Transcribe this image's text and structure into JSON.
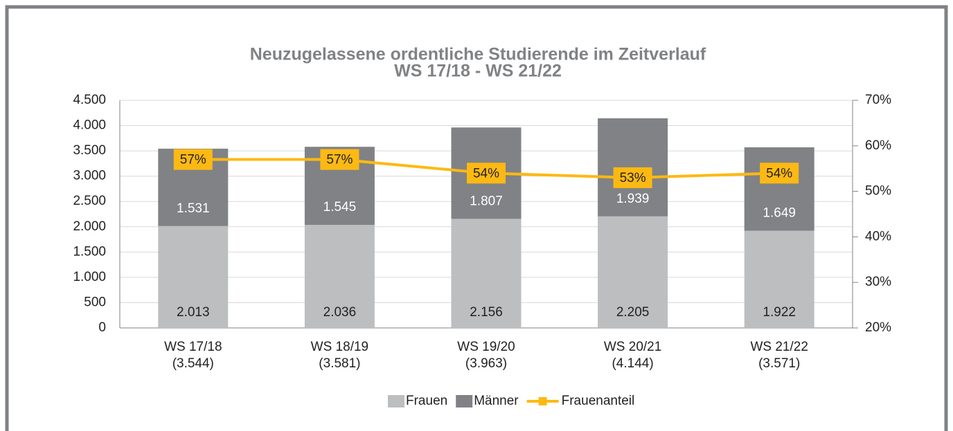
{
  "chart_data": {
    "type": "bar",
    "stacked": true,
    "title": [
      "Neuzugelassene ordentliche Studierende im Zeitverlauf",
      "WS 17/18 - WS 21/22"
    ],
    "categories": [
      [
        "WS 17/18",
        "(3.544)"
      ],
      [
        "WS 18/19",
        "(3.581)"
      ],
      [
        "WS 19/20",
        "(3.963)"
      ],
      [
        "WS 20/21",
        "(4.144)"
      ],
      [
        "WS 21/22",
        "(3.571)"
      ]
    ],
    "series": [
      {
        "name": "Frauen",
        "color": "#bcbec0",
        "values": [
          2013,
          2036,
          2156,
          2205,
          1922
        ],
        "value_labels": [
          "2.013",
          "2.036",
          "2.156",
          "2.205",
          "1.922"
        ]
      },
      {
        "name": "Männer",
        "color": "#808285",
        "values": [
          1531,
          1545,
          1807,
          1939,
          1649
        ],
        "value_labels": [
          "1.531",
          "1.545",
          "1.807",
          "1.939",
          "1.649"
        ]
      },
      {
        "name": "Frauenanteil",
        "color": "#fdb913",
        "type": "line",
        "axis": "y2",
        "values": [
          57,
          57,
          54,
          53,
          54
        ],
        "value_labels": [
          "57%",
          "57%",
          "54%",
          "53%",
          "54%"
        ]
      }
    ],
    "ylim": [
      0,
      4500
    ],
    "yticks": [
      0,
      500,
      {
        "value": 1000,
        "label": "1.000"
      },
      {
        "value": 1500,
        "label": "1.500"
      },
      {
        "value": 2000,
        "label": "2.000"
      },
      {
        "value": 2500,
        "label": "2.500"
      },
      {
        "value": 3000,
        "label": "3.000"
      },
      {
        "value": 3500,
        "label": "3.500"
      },
      {
        "value": 4000,
        "label": "4.000"
      },
      {
        "value": 4500,
        "label": "4.500"
      }
    ],
    "y2lim": [
      20,
      70
    ],
    "y2ticks": [
      {
        "value": 20,
        "label": "20%"
      },
      {
        "value": 30,
        "label": "30%"
      },
      {
        "value": 40,
        "label": "40%"
      },
      {
        "value": 50,
        "label": "50%"
      },
      {
        "value": 60,
        "label": "60%"
      },
      {
        "value": 70,
        "label": "70%"
      }
    ],
    "grid": true,
    "legend": "bottom"
  }
}
